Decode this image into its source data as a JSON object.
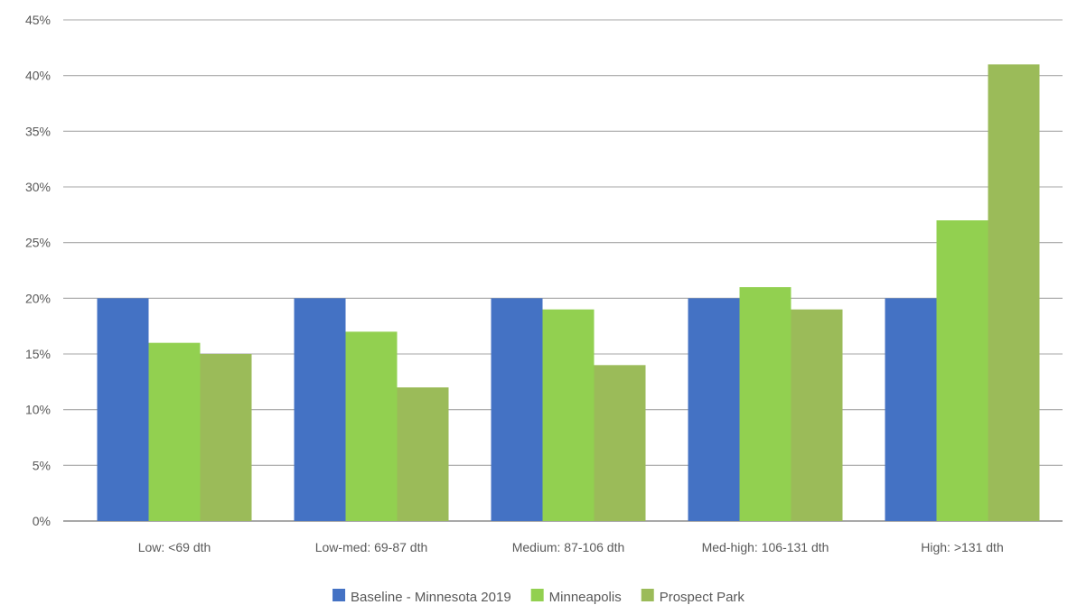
{
  "chart_data": {
    "type": "bar",
    "title": "",
    "xlabel": "",
    "ylabel": "",
    "ylim": [
      0,
      45
    ],
    "y_ticks": [
      "0%",
      "5%",
      "10%",
      "15%",
      "20%",
      "25%",
      "30%",
      "35%",
      "40%",
      "45%"
    ],
    "y_tick_values": [
      0,
      5,
      10,
      15,
      20,
      25,
      30,
      35,
      40,
      45
    ],
    "grid": true,
    "legend_position": "bottom",
    "categories": [
      "Low: <69 dth",
      "Low-med: 69-87 dth",
      "Medium: 87-106 dth",
      "Med-high: 106-131 dth",
      "High: >131 dth"
    ],
    "series": [
      {
        "name": "Baseline - Minnesota 2019",
        "color": "#4472C4",
        "values": [
          20,
          20,
          20,
          20,
          20
        ]
      },
      {
        "name": "Minneapolis",
        "color": "#92D050",
        "values": [
          16,
          17,
          19,
          21,
          27
        ]
      },
      {
        "name": "Prospect Park",
        "color": "#9BBB59",
        "values": [
          15,
          12,
          14,
          19,
          41
        ]
      }
    ]
  }
}
